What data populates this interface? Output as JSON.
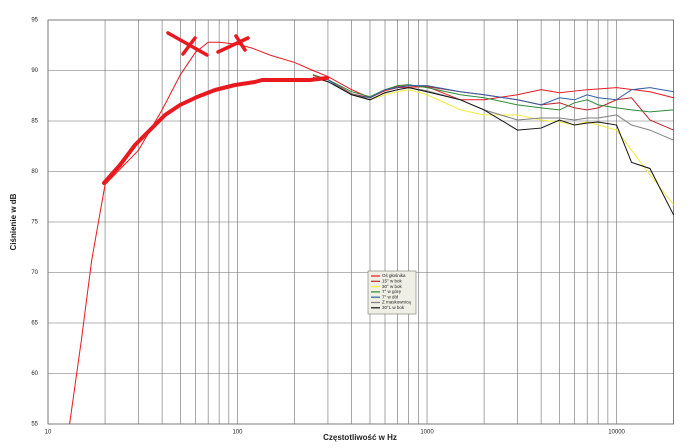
{
  "chart_data": {
    "type": "line",
    "xlabel": "Częstotliwość w Hz",
    "ylabel": "Ciśnienie w dB",
    "log_x": true,
    "xlim": [
      10,
      20000
    ],
    "ylim": [
      55,
      95
    ],
    "xticks": [
      10,
      100,
      1000,
      10000
    ],
    "xgrid": [
      20,
      30,
      40,
      50,
      60,
      70,
      80,
      90,
      200,
      300,
      400,
      500,
      600,
      700,
      800,
      900,
      2000,
      3000,
      4000,
      5000,
      6000,
      7000,
      8000,
      9000,
      20000
    ],
    "yticks": [
      55,
      60,
      65,
      70,
      75,
      80,
      85,
      90,
      95
    ],
    "grid": true,
    "series": [
      {
        "name": "Oś głośnika",
        "color": "#e8191f",
        "x": [
          13,
          15,
          17,
          20,
          30,
          40,
          50,
          60,
          70,
          80,
          100,
          120,
          150,
          200,
          250,
          300,
          400,
          500,
          600,
          700,
          1000,
          1500,
          2000,
          3000,
          4000,
          5000,
          7000,
          10000,
          15000,
          20000
        ],
        "values": [
          55,
          63.3,
          71.2,
          78.7,
          82.1,
          86.1,
          89.6,
          91.8,
          92.8,
          92.8,
          92.6,
          92.2,
          91.5,
          90.8,
          90.0,
          89.4,
          88.1,
          87.3,
          88.0,
          88.3,
          88.4,
          87.1,
          87.1,
          87.6,
          88.1,
          87.8,
          88.1,
          88.3,
          87.9,
          87.3
        ]
      },
      {
        "name": "15° w bok",
        "color": "#c0272d",
        "x": [
          250,
          300,
          400,
          500,
          600,
          700,
          800,
          1000,
          1500,
          2000,
          3000,
          4000,
          5000,
          6000,
          7000,
          8000,
          10000,
          12000,
          15000,
          20000
        ],
        "values": [
          89.5,
          89.1,
          87.7,
          87.3,
          88.1,
          88.4,
          88.5,
          88.4,
          87.9,
          87.6,
          87.1,
          86.6,
          86.8,
          86.3,
          86.1,
          86.3,
          87.1,
          87.3,
          85.1,
          84.1
        ]
      },
      {
        "name": "30° w bok",
        "color": "#f2ec3b",
        "x": [
          250,
          300,
          400,
          500,
          600,
          700,
          800,
          1000,
          1500,
          2000,
          3000,
          4000,
          5000,
          6000,
          7000,
          8000,
          10000,
          12000,
          15000,
          20000
        ],
        "values": [
          89.3,
          89.1,
          87.6,
          87.1,
          87.6,
          87.9,
          88.1,
          87.6,
          86.1,
          85.6,
          85.6,
          85.1,
          84.9,
          84.6,
          84.9,
          84.6,
          84.1,
          82.1,
          79.7,
          76.7
        ]
      },
      {
        "name": "7° w górę",
        "color": "#2e8b3a",
        "x": [
          250,
          300,
          400,
          500,
          600,
          700,
          800,
          1000,
          1500,
          2000,
          3000,
          4000,
          5000,
          6000,
          7000,
          8000,
          10000,
          12000,
          15000,
          20000
        ],
        "values": [
          89.6,
          89.1,
          87.9,
          87.4,
          88.1,
          88.5,
          88.6,
          88.3,
          87.6,
          87.3,
          86.6,
          86.3,
          86.1,
          86.8,
          87.1,
          86.6,
          86.3,
          86.1,
          85.9,
          86.1
        ]
      },
      {
        "name": "7° w dół",
        "color": "#2f5fa8",
        "x": [
          250,
          300,
          400,
          500,
          600,
          700,
          800,
          1000,
          1500,
          2000,
          3000,
          4000,
          5000,
          6000,
          7000,
          8000,
          10000,
          12000,
          15000,
          20000
        ],
        "values": [
          89.3,
          89.1,
          87.6,
          87.3,
          88.1,
          88.3,
          88.5,
          88.5,
          87.9,
          87.6,
          87.1,
          86.6,
          87.3,
          87.1,
          87.6,
          87.3,
          87.1,
          88.1,
          88.3,
          87.9
        ]
      },
      {
        "name": "Z maskownicą",
        "color": "#7f7f7f",
        "x": [
          250,
          300,
          400,
          500,
          600,
          700,
          800,
          1000,
          1500,
          2000,
          3000,
          4000,
          5000,
          6000,
          7000,
          8000,
          10000,
          12000,
          15000,
          20000
        ],
        "values": [
          89.3,
          88.9,
          87.7,
          87.1,
          87.8,
          88.1,
          88.3,
          88.0,
          87.1,
          86.1,
          85.1,
          85.3,
          85.3,
          85.1,
          85.3,
          85.3,
          85.6,
          84.6,
          84.1,
          83.1
        ]
      },
      {
        "name": "30°L w bok",
        "color": "#111111",
        "x": [
          250,
          300,
          400,
          500,
          600,
          700,
          800,
          1000,
          1500,
          2000,
          3000,
          4000,
          5000,
          6000,
          7000,
          8000,
          10000,
          12000,
          15000,
          20000
        ],
        "values": [
          89.3,
          88.9,
          87.6,
          87.1,
          87.8,
          88.1,
          88.3,
          87.9,
          87.1,
          86.1,
          84.1,
          84.3,
          85.1,
          84.6,
          84.8,
          84.9,
          84.6,
          80.9,
          80.3,
          75.7
        ]
      }
    ]
  }
}
